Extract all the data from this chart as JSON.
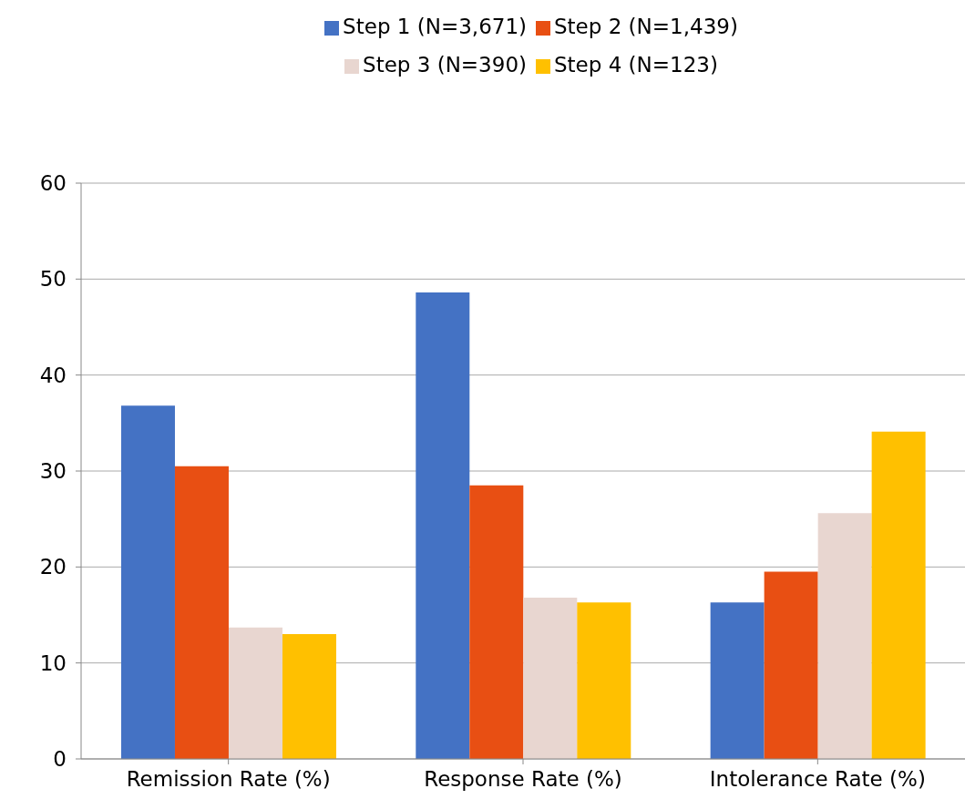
{
  "chart_data": {
    "type": "bar",
    "categories": [
      "Remission Rate (%)",
      "Response Rate (%)",
      "Intolerance Rate (%)"
    ],
    "series": [
      {
        "name": "Step 1 (N=3,671)",
        "color": "#4472c4",
        "values": [
          36.8,
          48.6,
          16.3
        ]
      },
      {
        "name": "Step 2 (N=1,439)",
        "color": "#e84f13",
        "values": [
          30.5,
          28.5,
          19.5
        ]
      },
      {
        "name": "Step 3 (N=390)",
        "color": "#e8d6d0",
        "values": [
          13.7,
          16.8,
          25.6
        ]
      },
      {
        "name": "Step 4 (N=123)",
        "color": "#ffc000",
        "values": [
          13.0,
          16.3,
          34.1
        ]
      }
    ],
    "ylim": [
      0,
      60
    ],
    "yticks": [
      0,
      10,
      20,
      30,
      40,
      50,
      60
    ],
    "grid": "y",
    "legend": "top"
  }
}
